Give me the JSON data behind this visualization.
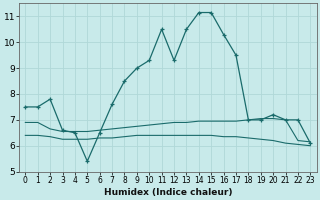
{
  "xlabel": "Humidex (Indice chaleur)",
  "xlim": [
    -0.5,
    23.5
  ],
  "ylim": [
    5,
    11.5
  ],
  "yticks": [
    5,
    6,
    7,
    8,
    9,
    10,
    11
  ],
  "xticks": [
    0,
    1,
    2,
    3,
    4,
    5,
    6,
    7,
    8,
    9,
    10,
    11,
    12,
    13,
    14,
    15,
    16,
    17,
    18,
    19,
    20,
    21,
    22,
    23
  ],
  "bg_color": "#c8eaea",
  "grid_color": "#b0d8d8",
  "line_color": "#1a6b6b",
  "line1_x": [
    0,
    1,
    2,
    3,
    4,
    5,
    6,
    7,
    8,
    9,
    10,
    11,
    12,
    13,
    14,
    15,
    16,
    17,
    18,
    19,
    20,
    21,
    22,
    23
  ],
  "line1_y": [
    7.5,
    7.5,
    7.8,
    6.6,
    6.5,
    5.4,
    6.5,
    7.6,
    8.5,
    9.0,
    9.3,
    10.5,
    9.3,
    10.5,
    11.15,
    11.15,
    10.3,
    9.5,
    7.0,
    7.0,
    7.2,
    7.0,
    7.0,
    6.1
  ],
  "line2_x": [
    0,
    1,
    2,
    3,
    4,
    5,
    6,
    7,
    8,
    9,
    10,
    11,
    12,
    13,
    14,
    15,
    16,
    17,
    18,
    19,
    20,
    21,
    22,
    23
  ],
  "line2_y": [
    6.9,
    6.9,
    6.65,
    6.55,
    6.55,
    6.55,
    6.6,
    6.65,
    6.7,
    6.75,
    6.8,
    6.85,
    6.9,
    6.9,
    6.95,
    6.95,
    6.95,
    6.95,
    7.0,
    7.05,
    7.05,
    7.0,
    6.2,
    6.15
  ],
  "line3_x": [
    0,
    1,
    2,
    3,
    4,
    5,
    6,
    7,
    8,
    9,
    10,
    11,
    12,
    13,
    14,
    15,
    16,
    17,
    18,
    19,
    20,
    21,
    22,
    23
  ],
  "line3_y": [
    6.4,
    6.4,
    6.35,
    6.25,
    6.25,
    6.25,
    6.3,
    6.3,
    6.35,
    6.4,
    6.4,
    6.4,
    6.4,
    6.4,
    6.4,
    6.4,
    6.35,
    6.35,
    6.3,
    6.25,
    6.2,
    6.1,
    6.05,
    6.0
  ]
}
